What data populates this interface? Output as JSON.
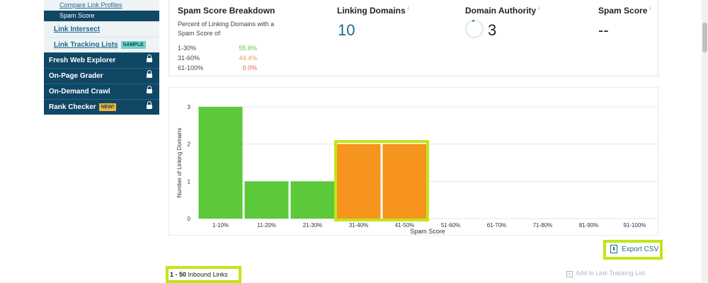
{
  "sidebar": {
    "sub_items": [
      {
        "label": "Compare Link Profiles",
        "active": false
      },
      {
        "label": "Spam Score",
        "active": true
      }
    ],
    "links": [
      {
        "label": "Link Intersect"
      },
      {
        "label": "Link Tracking Lists",
        "badge": "SAMPLE"
      }
    ],
    "locked_items": [
      {
        "label": "Fresh Web Explorer"
      },
      {
        "label": "On-Page Grader"
      },
      {
        "label": "On-Demand Crawl"
      },
      {
        "label": "Rank Checker",
        "badge": "NEW!"
      }
    ]
  },
  "stats": {
    "breakdown_title": "Spam Score Breakdown",
    "breakdown_desc": "Percent of Linking Domains with a Spam Score of:",
    "breakdown_rows": [
      {
        "range": "1-30%",
        "pct": "55.6%",
        "color": "#5cc93a"
      },
      {
        "range": "31-60%",
        "pct": "44.4%",
        "color": "#f59b50"
      },
      {
        "range": "61-100%",
        "pct": "0.0%",
        "color": "#ee5a5a"
      }
    ],
    "linking_domains_title": "Linking Domains",
    "linking_domains_value": "10",
    "domain_authority_title": "Domain Authority",
    "domain_authority_value": "3",
    "spam_score_title": "Spam Score",
    "spam_score_value": "--",
    "info_mark": "i"
  },
  "chart_data": {
    "type": "bar",
    "categories": [
      "1-10%",
      "11-20%",
      "21-30%",
      "31-40%",
      "41-50%",
      "51-60%",
      "61-70%",
      "71-80%",
      "81-90%",
      "91-100%"
    ],
    "values": [
      3,
      1,
      1,
      2,
      2,
      0,
      0,
      0,
      0,
      0
    ],
    "bar_colors": [
      "#5cc93a",
      "#5cc93a",
      "#5cc93a",
      "#f7941d",
      "#f7941d",
      "#5cc93a",
      "#5cc93a",
      "#5cc93a",
      "#5cc93a",
      "#5cc93a"
    ],
    "xlabel": "Spam Score",
    "ylabel": "Number of Linking Domains",
    "ylim": [
      0,
      3
    ],
    "yticks": [
      0,
      1,
      2,
      3
    ],
    "grid": true,
    "highlighted": [
      "31-40%",
      "41-50%"
    ]
  },
  "actions": {
    "export_label": "Export CSV",
    "add_tracking_label": "Add to Link Tracking List"
  },
  "results": {
    "range": "1 - 50",
    "label": "Inbound Links"
  },
  "colors": {
    "navy": "#0f4764",
    "accent_blue": "#1e6a8c",
    "highlight": "#c1e619"
  }
}
